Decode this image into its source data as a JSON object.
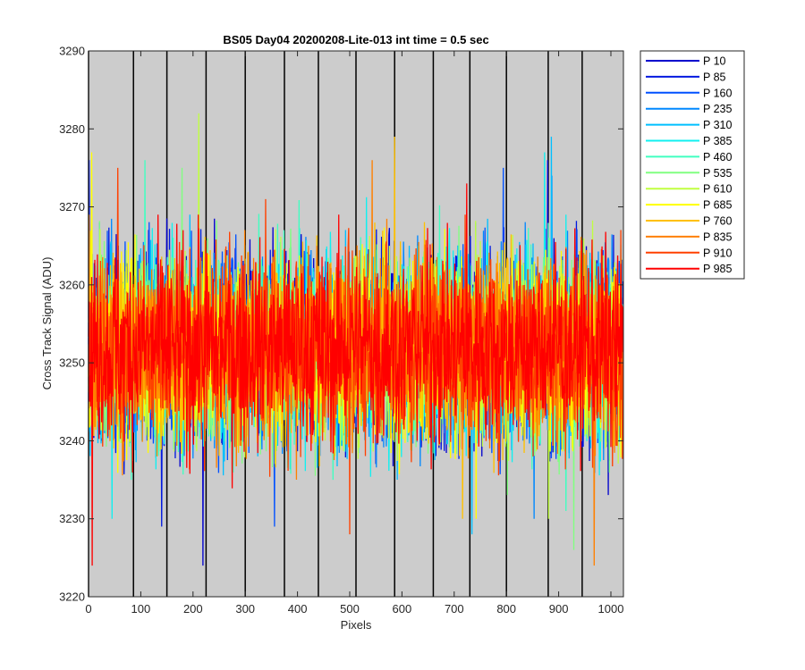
{
  "chart_data": {
    "type": "line",
    "title": "BS05 Day04 20200208-Lite-013 int time = 0.5 sec",
    "xlabel": "Pixels",
    "ylabel": "Cross Track Signal (ADU)",
    "xlim": [
      0,
      1024
    ],
    "ylim": [
      3220,
      3290
    ],
    "xticks": [
      0,
      100,
      200,
      300,
      400,
      500,
      600,
      700,
      800,
      900,
      1000
    ],
    "yticks": [
      3220,
      3230,
      3240,
      3250,
      3260,
      3270,
      3280,
      3290
    ],
    "vertical_lines_x": [
      0,
      86,
      150,
      225,
      300,
      375,
      440,
      512,
      586,
      660,
      730,
      800,
      880,
      945
    ],
    "background_color": "#cccccc",
    "legend_position": "outside-right",
    "noise_mean": 3252,
    "noise_sd": 6,
    "series": [
      {
        "name": "P 10",
        "color": "#0000cd",
        "min": 3224,
        "max": 3276
      },
      {
        "name": "P 85",
        "color": "#0018e0",
        "min": 3229,
        "max": 3276
      },
      {
        "name": "P 160",
        "color": "#0050ff",
        "min": 3229,
        "max": 3275
      },
      {
        "name": "P 235",
        "color": "#0088ff",
        "min": 3230,
        "max": 3274
      },
      {
        "name": "P 310",
        "color": "#00bfff",
        "min": 3228,
        "max": 3279
      },
      {
        "name": "P 385",
        "color": "#10f0f0",
        "min": 3230,
        "max": 3277
      },
      {
        "name": "P 460",
        "color": "#40ffc0",
        "min": 3231,
        "max": 3276
      },
      {
        "name": "P 535",
        "color": "#80ff80",
        "min": 3226,
        "max": 3275
      },
      {
        "name": "P 610",
        "color": "#c0ff40",
        "min": 3230,
        "max": 3282
      },
      {
        "name": "P 685",
        "color": "#ffff00",
        "min": 3230,
        "max": 3277
      },
      {
        "name": "P 760",
        "color": "#ffc000",
        "min": 3230,
        "max": 3279
      },
      {
        "name": "P 835",
        "color": "#ff8000",
        "min": 3224,
        "max": 3276
      },
      {
        "name": "P 910",
        "color": "#ff4000",
        "min": 3228,
        "max": 3275
      },
      {
        "name": "P 985",
        "color": "#ff0000",
        "min": 3224,
        "max": 3273
      }
    ]
  }
}
